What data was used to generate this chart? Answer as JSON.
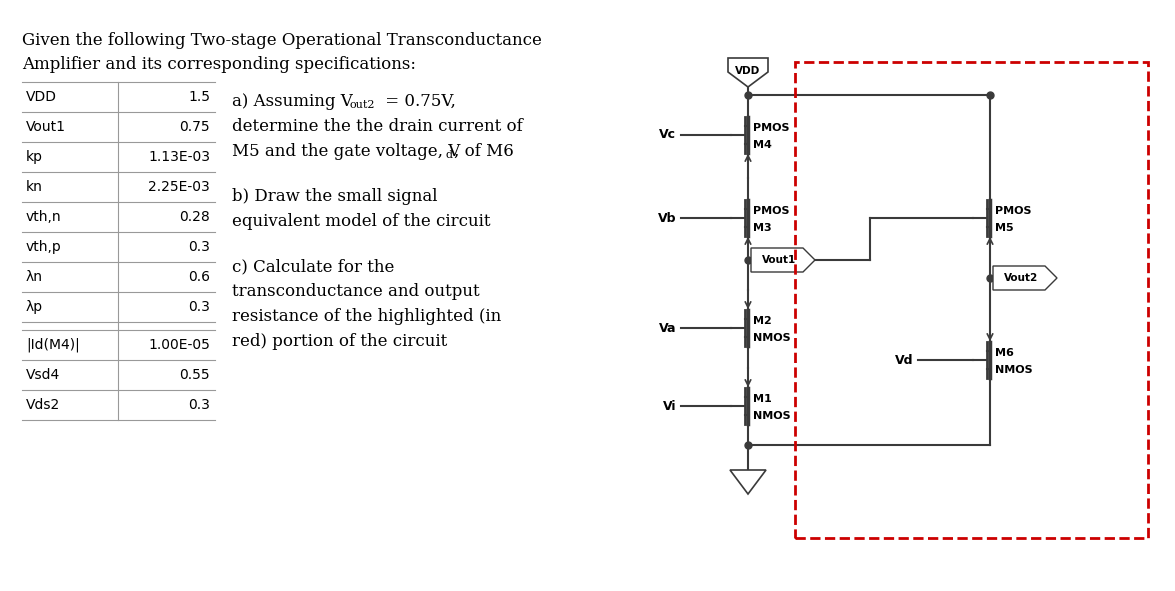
{
  "bg_color": "#ffffff",
  "line_color": "#3a3a3a",
  "red_dash_color": "#cc0000",
  "table_params_1": [
    "VDD",
    "Vout1",
    "kp",
    "kn",
    "vth,n",
    "vth,p",
    "λn",
    "λp"
  ],
  "table_values_1": [
    "1.5",
    "0.75",
    "1.13E-03",
    "2.25E-03",
    "0.28",
    "0.3",
    "0.6",
    "0.3"
  ],
  "table_params_2": [
    "|Id(M4)|",
    "Vsd4",
    "Vds2"
  ],
  "table_values_2": [
    "1.00E-05",
    "0.55",
    "0.3"
  ],
  "title1": "Given the following Two-stage Operational Transconductance",
  "title2": "Amplifier and its corresponding specifications:"
}
